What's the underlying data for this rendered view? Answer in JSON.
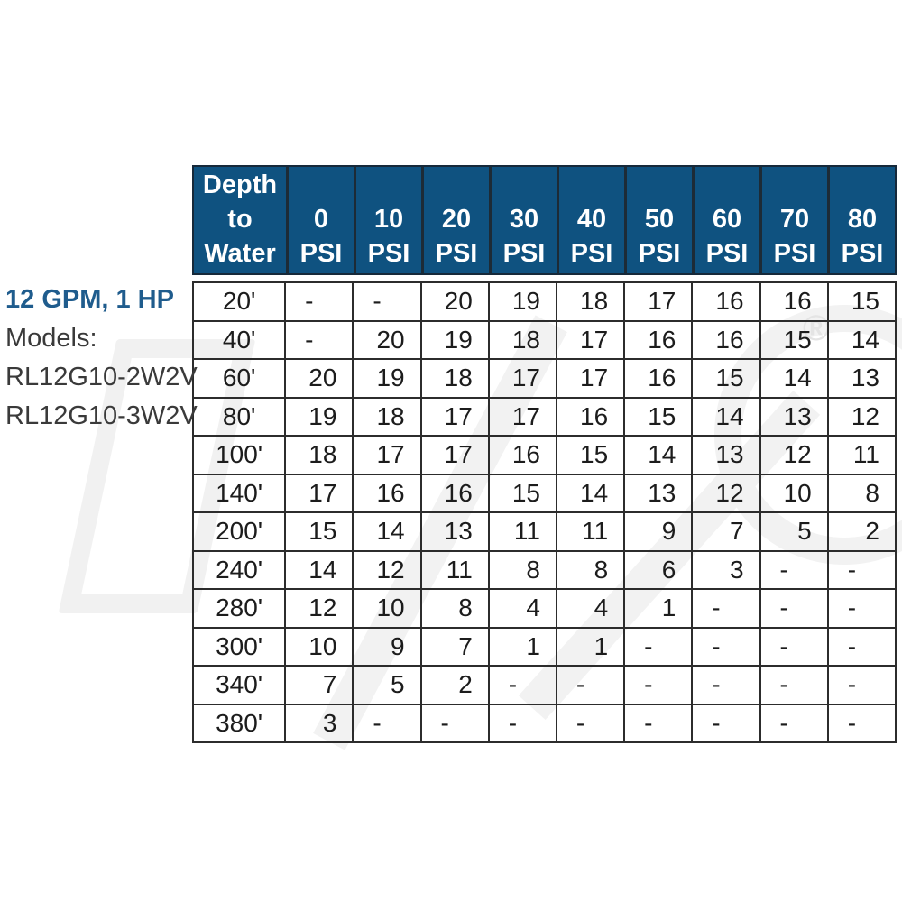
{
  "colors": {
    "header_bg": "#0F5280",
    "header_text": "#FFFFFF",
    "title_blue": "#1F5C8D",
    "label_text": "#3A3A3A",
    "cell_text": "#1C1C1C",
    "border": "#2C2C2C",
    "watermark": "#F2F2F2"
  },
  "left_panel": {
    "title": "12 GPM, 1 HP",
    "models_label": "Models:",
    "model_1": "RL12G10-2W2V",
    "model_2": "RL12G10-3W2V"
  },
  "table": {
    "corner_header": "Depth\nto\nWater",
    "psi_label": "PSI",
    "psi_values": [
      "0",
      "10",
      "20",
      "30",
      "40",
      "50",
      "60",
      "70",
      "80"
    ]
  },
  "watermark": {
    "registered_mark": "®"
  },
  "chart_data": {
    "type": "table",
    "title": "12 GPM, 1 HP",
    "models": [
      "RL12G10-2W2V",
      "RL12G10-3W2V"
    ],
    "columns": [
      "Depth to Water",
      "0 PSI",
      "10 PSI",
      "20 PSI",
      "30 PSI",
      "40 PSI",
      "50 PSI",
      "60 PSI",
      "70 PSI",
      "80 PSI"
    ],
    "rows": [
      [
        "20'",
        "-",
        "-",
        "20",
        "19",
        "18",
        "17",
        "16",
        "16",
        "15"
      ],
      [
        "40'",
        "-",
        "20",
        "19",
        "18",
        "17",
        "16",
        "16",
        "15",
        "14"
      ],
      [
        "60'",
        "20",
        "19",
        "18",
        "17",
        "17",
        "16",
        "15",
        "14",
        "13"
      ],
      [
        "80'",
        "19",
        "18",
        "17",
        "17",
        "16",
        "15",
        "14",
        "13",
        "12"
      ],
      [
        "100'",
        "18",
        "17",
        "17",
        "16",
        "15",
        "14",
        "13",
        "12",
        "11"
      ],
      [
        "140'",
        "17",
        "16",
        "16",
        "15",
        "14",
        "13",
        "12",
        "10",
        "8"
      ],
      [
        "200'",
        "15",
        "14",
        "13",
        "11",
        "11",
        "9",
        "7",
        "5",
        "2"
      ],
      [
        "240'",
        "14",
        "12",
        "11",
        "8",
        "8",
        "6",
        "3",
        "-",
        "-"
      ],
      [
        "280'",
        "12",
        "10",
        "8",
        "4",
        "4",
        "1",
        "-",
        "-",
        "-"
      ],
      [
        "300'",
        "10",
        "9",
        "7",
        "1",
        "1",
        "-",
        "-",
        "-",
        "-"
      ],
      [
        "340'",
        "7",
        "5",
        "2",
        "-",
        "-",
        "-",
        "-",
        "-",
        "-"
      ],
      [
        "380'",
        "3",
        "-",
        "-",
        "-",
        "-",
        "-",
        "-",
        "-",
        "-"
      ]
    ]
  }
}
